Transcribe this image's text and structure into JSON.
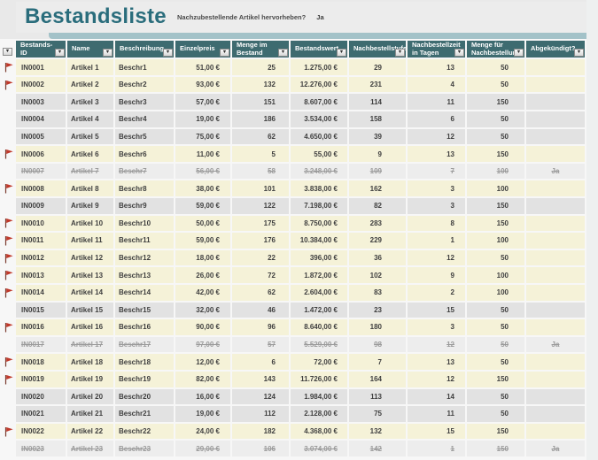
{
  "title": "Bestandsliste",
  "toggle": {
    "question": "Nachzubestellende Artikel hervorheben?",
    "answer": "Ja"
  },
  "columns": [
    {
      "label": "Bestands-ID"
    },
    {
      "label": "Name"
    },
    {
      "label": "Beschreibung"
    },
    {
      "label": "Einzelpreis"
    },
    {
      "label": "Menge im Bestand"
    },
    {
      "label": "Bestandswert"
    },
    {
      "label": "Nachbestellstufe"
    },
    {
      "label": "Nachbestellzeit in Tagen"
    },
    {
      "label": "Menge für Nachbestellung"
    },
    {
      "label": "Abgekündigt?"
    }
  ],
  "rows": [
    {
      "id": "IN0001",
      "name": "Artikel 1",
      "beschreibung": "Beschr1",
      "einzelpreis": "51,00 €",
      "menge_im_bestand": "25",
      "bestandswert": "1.275,00 €",
      "nachbestellstufe": "29",
      "nachbestellzeit_in_tagen": "13",
      "menge_fuer_nachbestellung": "50",
      "abgekuendigt": "",
      "flagged": true,
      "discontinued": false
    },
    {
      "id": "IN0002",
      "name": "Artikel 2",
      "beschreibung": "Beschr2",
      "einzelpreis": "93,00 €",
      "menge_im_bestand": "132",
      "bestandswert": "12.276,00 €",
      "nachbestellstufe": "231",
      "nachbestellzeit_in_tagen": "4",
      "menge_fuer_nachbestellung": "50",
      "abgekuendigt": "",
      "flagged": true,
      "discontinued": false
    },
    {
      "id": "IN0003",
      "name": "Artikel 3",
      "beschreibung": "Beschr3",
      "einzelpreis": "57,00 €",
      "menge_im_bestand": "151",
      "bestandswert": "8.607,00 €",
      "nachbestellstufe": "114",
      "nachbestellzeit_in_tagen": "11",
      "menge_fuer_nachbestellung": "150",
      "abgekuendigt": "",
      "flagged": false,
      "discontinued": false
    },
    {
      "id": "IN0004",
      "name": "Artikel 4",
      "beschreibung": "Beschr4",
      "einzelpreis": "19,00 €",
      "menge_im_bestand": "186",
      "bestandswert": "3.534,00 €",
      "nachbestellstufe": "158",
      "nachbestellzeit_in_tagen": "6",
      "menge_fuer_nachbestellung": "50",
      "abgekuendigt": "",
      "flagged": false,
      "discontinued": false
    },
    {
      "id": "IN0005",
      "name": "Artikel 5",
      "beschreibung": "Beschr5",
      "einzelpreis": "75,00 €",
      "menge_im_bestand": "62",
      "bestandswert": "4.650,00 €",
      "nachbestellstufe": "39",
      "nachbestellzeit_in_tagen": "12",
      "menge_fuer_nachbestellung": "50",
      "abgekuendigt": "",
      "flagged": false,
      "discontinued": false
    },
    {
      "id": "IN0006",
      "name": "Artikel 6",
      "beschreibung": "Beschr6",
      "einzelpreis": "11,00 €",
      "menge_im_bestand": "5",
      "bestandswert": "55,00 €",
      "nachbestellstufe": "9",
      "nachbestellzeit_in_tagen": "13",
      "menge_fuer_nachbestellung": "150",
      "abgekuendigt": "",
      "flagged": true,
      "discontinued": false
    },
    {
      "id": "IN0007",
      "name": "Artikel 7",
      "beschreibung": "Beschr7",
      "einzelpreis": "56,00 €",
      "menge_im_bestand": "58",
      "bestandswert": "3.248,00 €",
      "nachbestellstufe": "109",
      "nachbestellzeit_in_tagen": "7",
      "menge_fuer_nachbestellung": "100",
      "abgekuendigt": "Ja",
      "flagged": false,
      "discontinued": true
    },
    {
      "id": "IN0008",
      "name": "Artikel 8",
      "beschreibung": "Beschr8",
      "einzelpreis": "38,00 €",
      "menge_im_bestand": "101",
      "bestandswert": "3.838,00 €",
      "nachbestellstufe": "162",
      "nachbestellzeit_in_tagen": "3",
      "menge_fuer_nachbestellung": "100",
      "abgekuendigt": "",
      "flagged": true,
      "discontinued": false
    },
    {
      "id": "IN0009",
      "name": "Artikel 9",
      "beschreibung": "Beschr9",
      "einzelpreis": "59,00 €",
      "menge_im_bestand": "122",
      "bestandswert": "7.198,00 €",
      "nachbestellstufe": "82",
      "nachbestellzeit_in_tagen": "3",
      "menge_fuer_nachbestellung": "150",
      "abgekuendigt": "",
      "flagged": false,
      "discontinued": false
    },
    {
      "id": "IN0010",
      "name": "Artikel 10",
      "beschreibung": "Beschr10",
      "einzelpreis": "50,00 €",
      "menge_im_bestand": "175",
      "bestandswert": "8.750,00 €",
      "nachbestellstufe": "283",
      "nachbestellzeit_in_tagen": "8",
      "menge_fuer_nachbestellung": "150",
      "abgekuendigt": "",
      "flagged": true,
      "discontinued": false
    },
    {
      "id": "IN0011",
      "name": "Artikel 11",
      "beschreibung": "Beschr11",
      "einzelpreis": "59,00 €",
      "menge_im_bestand": "176",
      "bestandswert": "10.384,00 €",
      "nachbestellstufe": "229",
      "nachbestellzeit_in_tagen": "1",
      "menge_fuer_nachbestellung": "100",
      "abgekuendigt": "",
      "flagged": true,
      "discontinued": false
    },
    {
      "id": "IN0012",
      "name": "Artikel 12",
      "beschreibung": "Beschr12",
      "einzelpreis": "18,00 €",
      "menge_im_bestand": "22",
      "bestandswert": "396,00 €",
      "nachbestellstufe": "36",
      "nachbestellzeit_in_tagen": "12",
      "menge_fuer_nachbestellung": "50",
      "abgekuendigt": "",
      "flagged": true,
      "discontinued": false
    },
    {
      "id": "IN0013",
      "name": "Artikel 13",
      "beschreibung": "Beschr13",
      "einzelpreis": "26,00 €",
      "menge_im_bestand": "72",
      "bestandswert": "1.872,00 €",
      "nachbestellstufe": "102",
      "nachbestellzeit_in_tagen": "9",
      "menge_fuer_nachbestellung": "100",
      "abgekuendigt": "",
      "flagged": true,
      "discontinued": false
    },
    {
      "id": "IN0014",
      "name": "Artikel 14",
      "beschreibung": "Beschr14",
      "einzelpreis": "42,00 €",
      "menge_im_bestand": "62",
      "bestandswert": "2.604,00 €",
      "nachbestellstufe": "83",
      "nachbestellzeit_in_tagen": "2",
      "menge_fuer_nachbestellung": "100",
      "abgekuendigt": "",
      "flagged": true,
      "discontinued": false
    },
    {
      "id": "IN0015",
      "name": "Artikel 15",
      "beschreibung": "Beschr15",
      "einzelpreis": "32,00 €",
      "menge_im_bestand": "46",
      "bestandswert": "1.472,00 €",
      "nachbestellstufe": "23",
      "nachbestellzeit_in_tagen": "15",
      "menge_fuer_nachbestellung": "50",
      "abgekuendigt": "",
      "flagged": false,
      "discontinued": false
    },
    {
      "id": "IN0016",
      "name": "Artikel 16",
      "beschreibung": "Beschr16",
      "einzelpreis": "90,00 €",
      "menge_im_bestand": "96",
      "bestandswert": "8.640,00 €",
      "nachbestellstufe": "180",
      "nachbestellzeit_in_tagen": "3",
      "menge_fuer_nachbestellung": "50",
      "abgekuendigt": "",
      "flagged": true,
      "discontinued": false
    },
    {
      "id": "IN0017",
      "name": "Artikel 17",
      "beschreibung": "Beschr17",
      "einzelpreis": "97,00 €",
      "menge_im_bestand": "57",
      "bestandswert": "5.529,00 €",
      "nachbestellstufe": "98",
      "nachbestellzeit_in_tagen": "12",
      "menge_fuer_nachbestellung": "50",
      "abgekuendigt": "Ja",
      "flagged": false,
      "discontinued": true
    },
    {
      "id": "IN0018",
      "name": "Artikel 18",
      "beschreibung": "Beschr18",
      "einzelpreis": "12,00 €",
      "menge_im_bestand": "6",
      "bestandswert": "72,00 €",
      "nachbestellstufe": "7",
      "nachbestellzeit_in_tagen": "13",
      "menge_fuer_nachbestellung": "50",
      "abgekuendigt": "",
      "flagged": true,
      "discontinued": false
    },
    {
      "id": "IN0019",
      "name": "Artikel 19",
      "beschreibung": "Beschr19",
      "einzelpreis": "82,00 €",
      "menge_im_bestand": "143",
      "bestandswert": "11.726,00 €",
      "nachbestellstufe": "164",
      "nachbestellzeit_in_tagen": "12",
      "menge_fuer_nachbestellung": "150",
      "abgekuendigt": "",
      "flagged": true,
      "discontinued": false
    },
    {
      "id": "IN0020",
      "name": "Artikel 20",
      "beschreibung": "Beschr20",
      "einzelpreis": "16,00 €",
      "menge_im_bestand": "124",
      "bestandswert": "1.984,00 €",
      "nachbestellstufe": "113",
      "nachbestellzeit_in_tagen": "14",
      "menge_fuer_nachbestellung": "50",
      "abgekuendigt": "",
      "flagged": false,
      "discontinued": false
    },
    {
      "id": "IN0021",
      "name": "Artikel 21",
      "beschreibung": "Beschr21",
      "einzelpreis": "19,00 €",
      "menge_im_bestand": "112",
      "bestandswert": "2.128,00 €",
      "nachbestellstufe": "75",
      "nachbestellzeit_in_tagen": "11",
      "menge_fuer_nachbestellung": "50",
      "abgekuendigt": "",
      "flagged": false,
      "discontinued": false
    },
    {
      "id": "IN0022",
      "name": "Artikel 22",
      "beschreibung": "Beschr22",
      "einzelpreis": "24,00 €",
      "menge_im_bestand": "182",
      "bestandswert": "4.368,00 €",
      "nachbestellstufe": "132",
      "nachbestellzeit_in_tagen": "15",
      "menge_fuer_nachbestellung": "150",
      "abgekuendigt": "",
      "flagged": true,
      "discontinued": false
    },
    {
      "id": "IN0023",
      "name": "Artikel 23",
      "beschreibung": "Beschr23",
      "einzelpreis": "29,00 €",
      "menge_im_bestand": "106",
      "bestandswert": "3.074,00 €",
      "nachbestellstufe": "142",
      "nachbestellzeit_in_tagen": "1",
      "menge_fuer_nachbestellung": "150",
      "abgekuendigt": "Ja",
      "flagged": false,
      "discontinued": true
    }
  ],
  "icons": {
    "filter_arrow": "▼",
    "reorder_flag": "flag-icon"
  },
  "colors": {
    "header_bg": "#3e6b70",
    "title_text": "#2a6d7c",
    "highlight_row": "#f5f2d8",
    "normal_row": "#e2e2e2",
    "struck_row": "#ededed",
    "flag_red": "#c0392b",
    "teal_strip": "#a3c2c8"
  }
}
